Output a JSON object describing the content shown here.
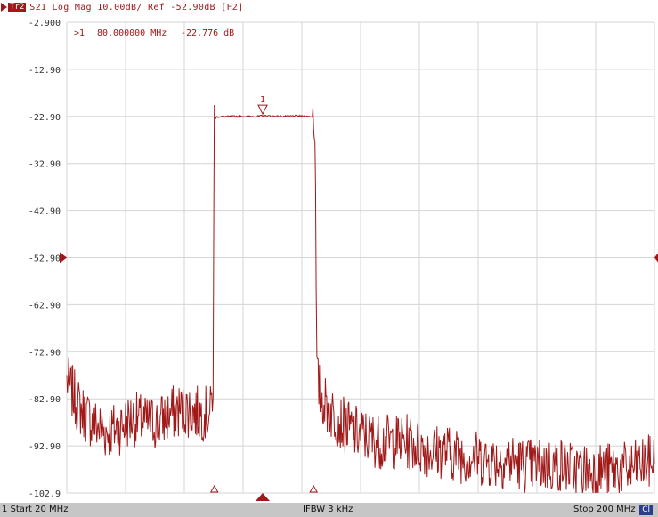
{
  "header": {
    "trace_badge": "Tr2",
    "title": "S21 Log Mag 10.00dB/ Ref -52.90dB [F2]"
  },
  "marker_readout": {
    "index": ">1",
    "frequency": "80.000000 MHz",
    "value": "-22.776 dB"
  },
  "marker_label": "1",
  "y_axis": {
    "tick_labels": [
      "-2.900",
      "-12.90",
      "-22.90",
      "-32.90",
      "-42.90",
      "-52.90",
      "-62.90",
      "-72.90",
      "-82.90",
      "-92.90",
      "-102.9"
    ],
    "ref_value": "-52.90"
  },
  "status": {
    "start": "1  Start 20 MHz",
    "ifbw": "IFBW 3 kHz",
    "stop": "Stop 200 MHz",
    "cal_badge": "Cl"
  },
  "colors": {
    "trace": "#a01818",
    "grid": "#d4d4d4",
    "status_bar": "#c6c6c6",
    "cal_badge": "#2a3d8f"
  },
  "chart_data": {
    "type": "line",
    "xlabel": "",
    "ylabel": "",
    "xlim": [
      20,
      200
    ],
    "ylim": [
      -102.9,
      -2.9
    ],
    "x_unit": "MHz",
    "y_unit": "dB",
    "grid": true,
    "series": [
      {
        "x": [
          20,
          24,
          28,
          32,
          36,
          40,
          44,
          48,
          52,
          56,
          60,
          64,
          64.8,
          65.2,
          66,
          70,
          74,
          78,
          80,
          82,
          86,
          90,
          94,
          95.6,
          96,
          96.6,
          97.6,
          100,
          104,
          108,
          112,
          116,
          120,
          124,
          128,
          132,
          136,
          140,
          144,
          148,
          152,
          156,
          160,
          164,
          168,
          172,
          176,
          180,
          184,
          188,
          192,
          196,
          200
        ],
        "values": [
          -79,
          -85,
          -88,
          -90,
          -89,
          -87,
          -88,
          -88,
          -86,
          -85,
          -86,
          -86,
          -80,
          -23.5,
          -23.0,
          -22.9,
          -22.9,
          -22.9,
          -22.776,
          -22.8,
          -22.9,
          -22.8,
          -22.9,
          -23.0,
          -23.5,
          -78,
          -82,
          -85,
          -88,
          -90,
          -91,
          -92,
          -92,
          -92,
          -93,
          -94,
          -94,
          -95,
          -95,
          -96,
          -96,
          -96,
          -97,
          -97,
          -97,
          -97,
          -98,
          -98,
          -98,
          -98,
          -98,
          -97,
          -96
        ]
      }
    ]
  }
}
